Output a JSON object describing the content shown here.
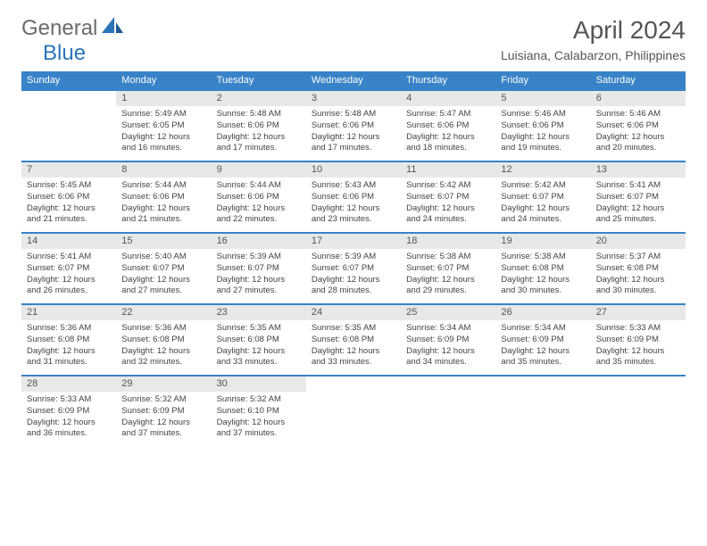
{
  "brand": {
    "text1": "General",
    "text2": "Blue"
  },
  "title": "April 2024",
  "location": "Luisiana, Calabarzon, Philippines",
  "colors": {
    "header_bg": "#3883c7",
    "daynum_bg": "#e8e8e8",
    "rule": "#3883c7",
    "text": "#555555"
  },
  "weekdays": [
    "Sunday",
    "Monday",
    "Tuesday",
    "Wednesday",
    "Thursday",
    "Friday",
    "Saturday"
  ],
  "weeks": [
    [
      null,
      {
        "n": "1",
        "sr": "Sunrise: 5:49 AM",
        "ss": "Sunset: 6:05 PM",
        "d1": "Daylight: 12 hours",
        "d2": "and 16 minutes."
      },
      {
        "n": "2",
        "sr": "Sunrise: 5:48 AM",
        "ss": "Sunset: 6:06 PM",
        "d1": "Daylight: 12 hours",
        "d2": "and 17 minutes."
      },
      {
        "n": "3",
        "sr": "Sunrise: 5:48 AM",
        "ss": "Sunset: 6:06 PM",
        "d1": "Daylight: 12 hours",
        "d2": "and 17 minutes."
      },
      {
        "n": "4",
        "sr": "Sunrise: 5:47 AM",
        "ss": "Sunset: 6:06 PM",
        "d1": "Daylight: 12 hours",
        "d2": "and 18 minutes."
      },
      {
        "n": "5",
        "sr": "Sunrise: 5:46 AM",
        "ss": "Sunset: 6:06 PM",
        "d1": "Daylight: 12 hours",
        "d2": "and 19 minutes."
      },
      {
        "n": "6",
        "sr": "Sunrise: 5:46 AM",
        "ss": "Sunset: 6:06 PM",
        "d1": "Daylight: 12 hours",
        "d2": "and 20 minutes."
      }
    ],
    [
      {
        "n": "7",
        "sr": "Sunrise: 5:45 AM",
        "ss": "Sunset: 6:06 PM",
        "d1": "Daylight: 12 hours",
        "d2": "and 21 minutes."
      },
      {
        "n": "8",
        "sr": "Sunrise: 5:44 AM",
        "ss": "Sunset: 6:06 PM",
        "d1": "Daylight: 12 hours",
        "d2": "and 21 minutes."
      },
      {
        "n": "9",
        "sr": "Sunrise: 5:44 AM",
        "ss": "Sunset: 6:06 PM",
        "d1": "Daylight: 12 hours",
        "d2": "and 22 minutes."
      },
      {
        "n": "10",
        "sr": "Sunrise: 5:43 AM",
        "ss": "Sunset: 6:06 PM",
        "d1": "Daylight: 12 hours",
        "d2": "and 23 minutes."
      },
      {
        "n": "11",
        "sr": "Sunrise: 5:42 AM",
        "ss": "Sunset: 6:07 PM",
        "d1": "Daylight: 12 hours",
        "d2": "and 24 minutes."
      },
      {
        "n": "12",
        "sr": "Sunrise: 5:42 AM",
        "ss": "Sunset: 6:07 PM",
        "d1": "Daylight: 12 hours",
        "d2": "and 24 minutes."
      },
      {
        "n": "13",
        "sr": "Sunrise: 5:41 AM",
        "ss": "Sunset: 6:07 PM",
        "d1": "Daylight: 12 hours",
        "d2": "and 25 minutes."
      }
    ],
    [
      {
        "n": "14",
        "sr": "Sunrise: 5:41 AM",
        "ss": "Sunset: 6:07 PM",
        "d1": "Daylight: 12 hours",
        "d2": "and 26 minutes."
      },
      {
        "n": "15",
        "sr": "Sunrise: 5:40 AM",
        "ss": "Sunset: 6:07 PM",
        "d1": "Daylight: 12 hours",
        "d2": "and 27 minutes."
      },
      {
        "n": "16",
        "sr": "Sunrise: 5:39 AM",
        "ss": "Sunset: 6:07 PM",
        "d1": "Daylight: 12 hours",
        "d2": "and 27 minutes."
      },
      {
        "n": "17",
        "sr": "Sunrise: 5:39 AM",
        "ss": "Sunset: 6:07 PM",
        "d1": "Daylight: 12 hours",
        "d2": "and 28 minutes."
      },
      {
        "n": "18",
        "sr": "Sunrise: 5:38 AM",
        "ss": "Sunset: 6:07 PM",
        "d1": "Daylight: 12 hours",
        "d2": "and 29 minutes."
      },
      {
        "n": "19",
        "sr": "Sunrise: 5:38 AM",
        "ss": "Sunset: 6:08 PM",
        "d1": "Daylight: 12 hours",
        "d2": "and 30 minutes."
      },
      {
        "n": "20",
        "sr": "Sunrise: 5:37 AM",
        "ss": "Sunset: 6:08 PM",
        "d1": "Daylight: 12 hours",
        "d2": "and 30 minutes."
      }
    ],
    [
      {
        "n": "21",
        "sr": "Sunrise: 5:36 AM",
        "ss": "Sunset: 6:08 PM",
        "d1": "Daylight: 12 hours",
        "d2": "and 31 minutes."
      },
      {
        "n": "22",
        "sr": "Sunrise: 5:36 AM",
        "ss": "Sunset: 6:08 PM",
        "d1": "Daylight: 12 hours",
        "d2": "and 32 minutes."
      },
      {
        "n": "23",
        "sr": "Sunrise: 5:35 AM",
        "ss": "Sunset: 6:08 PM",
        "d1": "Daylight: 12 hours",
        "d2": "and 33 minutes."
      },
      {
        "n": "24",
        "sr": "Sunrise: 5:35 AM",
        "ss": "Sunset: 6:08 PM",
        "d1": "Daylight: 12 hours",
        "d2": "and 33 minutes."
      },
      {
        "n": "25",
        "sr": "Sunrise: 5:34 AM",
        "ss": "Sunset: 6:09 PM",
        "d1": "Daylight: 12 hours",
        "d2": "and 34 minutes."
      },
      {
        "n": "26",
        "sr": "Sunrise: 5:34 AM",
        "ss": "Sunset: 6:09 PM",
        "d1": "Daylight: 12 hours",
        "d2": "and 35 minutes."
      },
      {
        "n": "27",
        "sr": "Sunrise: 5:33 AM",
        "ss": "Sunset: 6:09 PM",
        "d1": "Daylight: 12 hours",
        "d2": "and 35 minutes."
      }
    ],
    [
      {
        "n": "28",
        "sr": "Sunrise: 5:33 AM",
        "ss": "Sunset: 6:09 PM",
        "d1": "Daylight: 12 hours",
        "d2": "and 36 minutes."
      },
      {
        "n": "29",
        "sr": "Sunrise: 5:32 AM",
        "ss": "Sunset: 6:09 PM",
        "d1": "Daylight: 12 hours",
        "d2": "and 37 minutes."
      },
      {
        "n": "30",
        "sr": "Sunrise: 5:32 AM",
        "ss": "Sunset: 6:10 PM",
        "d1": "Daylight: 12 hours",
        "d2": "and 37 minutes."
      },
      null,
      null,
      null,
      null
    ]
  ]
}
